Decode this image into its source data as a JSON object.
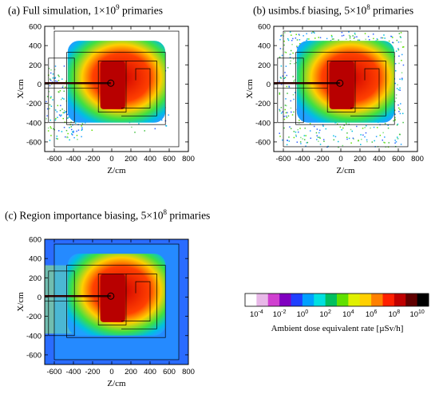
{
  "chart_data": [
    {
      "type": "heatmap",
      "panel": "a",
      "title_prefix": "(a) Full simulation, 1×10",
      "title_exp": "9",
      "title_suffix": " primaries",
      "xlabel": "Z/cm",
      "ylabel": "X/cm",
      "xlim": [
        -700,
        800
      ],
      "ylim": [
        -700,
        600
      ],
      "xticks": [
        -600,
        -400,
        -200,
        0,
        200,
        400,
        600,
        800
      ],
      "yticks": [
        600,
        400,
        200,
        0,
        -200,
        -400,
        -600
      ],
      "background": "sparse"
    },
    {
      "type": "heatmap",
      "panel": "b",
      "title_prefix": "(b) usimbs.f biasing, 5×10",
      "title_exp": "8",
      "title_suffix": " primaries",
      "xlabel": "Z/cm",
      "ylabel": "X/cm",
      "xlim": [
        -700,
        800
      ],
      "ylim": [
        -700,
        600
      ],
      "xticks": [
        -600,
        -400,
        -200,
        0,
        200,
        400,
        600,
        800
      ],
      "yticks": [
        600,
        400,
        200,
        0,
        -200,
        -400,
        -600
      ],
      "background": "scattered"
    },
    {
      "type": "heatmap",
      "panel": "c",
      "title_prefix": "(c) Region importance biasing, 5×10",
      "title_exp": "8",
      "title_suffix": " primaries",
      "xlabel": "Z/cm",
      "ylabel": "X/cm",
      "xlim": [
        -700,
        800
      ],
      "ylim": [
        -700,
        600
      ],
      "xticks": [
        -600,
        -400,
        -200,
        0,
        200,
        400,
        600,
        800
      ],
      "yticks": [
        600,
        400,
        200,
        0,
        -200,
        -400,
        -600
      ],
      "background": "filled"
    }
  ],
  "colorbar": {
    "title": "Ambient dose equivalent rate [µSv/h]",
    "base": "10",
    "exponents": [
      "-4",
      "-2",
      "0",
      "2",
      "4",
      "6",
      "8",
      "10"
    ],
    "range_exp": [
      -5,
      11
    ],
    "colors": [
      "#ffffff",
      "#e8b8e8",
      "#d040d0",
      "#8000c0",
      "#2040ff",
      "#00a0ff",
      "#00e0e0",
      "#00c060",
      "#60e000",
      "#e0f000",
      "#ffd000",
      "#ff8000",
      "#ff2000",
      "#c00000",
      "#600000",
      "#000000"
    ]
  }
}
